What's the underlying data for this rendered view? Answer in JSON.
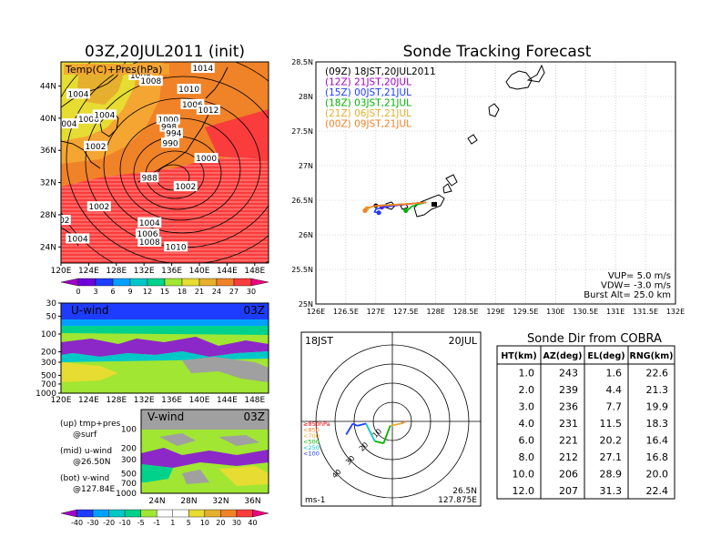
{
  "left_title": "03Z,20JUL2011 (init)",
  "right_title": "Sonde Tracking Forecast",
  "top_map": {
    "field_label": "Temp(C)+Pres(hPa)",
    "lat_labels": [
      "44N",
      "40N",
      "36N",
      "32N",
      "28N",
      "24N"
    ],
    "lon_labels": [
      "120E",
      "124E",
      "128E",
      "132E",
      "136E",
      "140E",
      "144E",
      "148E"
    ],
    "pressure_labels": [
      {
        "text": "1004",
        "lon": 122.5,
        "lat": 43.0
      },
      {
        "text": "1008",
        "lon": 131.5,
        "lat": 45.3
      },
      {
        "text": "1014",
        "lon": 140.5,
        "lat": 46.2
      },
      {
        "text": "1010",
        "lon": 138.5,
        "lat": 43.6
      },
      {
        "text": "1008",
        "lon": 133.0,
        "lat": 44.6
      },
      {
        "text": "1004",
        "lon": 120.8,
        "lat": 39.3
      },
      {
        "text": "1006",
        "lon": 124.0,
        "lat": 39.9
      },
      {
        "text": "1004",
        "lon": 126.3,
        "lat": 40.4
      },
      {
        "text": "1006",
        "lon": 139.0,
        "lat": 41.7
      },
      {
        "text": "1012",
        "lon": 141.3,
        "lat": 41.0
      },
      {
        "text": "1000",
        "lon": 135.5,
        "lat": 39.8
      },
      {
        "text": "998",
        "lon": 135.6,
        "lat": 38.9
      },
      {
        "text": "994",
        "lon": 136.3,
        "lat": 38.1
      },
      {
        "text": "990",
        "lon": 135.8,
        "lat": 36.9
      },
      {
        "text": "1002",
        "lon": 125.0,
        "lat": 36.5
      },
      {
        "text": "1000",
        "lon": 141.0,
        "lat": 35.0
      },
      {
        "text": "988",
        "lon": 132.8,
        "lat": 32.6
      },
      {
        "text": "1002",
        "lon": 138.0,
        "lat": 31.5
      },
      {
        "text": "1002",
        "lon": 125.5,
        "lat": 29.0
      },
      {
        "text": "02",
        "lon": 120.5,
        "lat": 27.3
      },
      {
        "text": "1004",
        "lon": 132.8,
        "lat": 27.0
      },
      {
        "text": "1004",
        "lon": 122.4,
        "lat": 25.0
      },
      {
        "text": "1006",
        "lon": 132.5,
        "lat": 25.6
      },
      {
        "text": "1008",
        "lon": 132.8,
        "lat": 24.6
      },
      {
        "text": "1010",
        "lon": 136.6,
        "lat": 24.0
      }
    ]
  },
  "temp_colorbar": {
    "labels": [
      "0",
      "3",
      "6",
      "9",
      "12",
      "15",
      "18",
      "21",
      "24",
      "27",
      "30"
    ],
    "colors": [
      "#a000c8",
      "#6e00dc",
      "#1e3cff",
      "#00a0ff",
      "#00c8c8",
      "#00d28c",
      "#a0e632",
      "#e6dc32",
      "#e6af2d",
      "#f08228",
      "#fa3c3c",
      "#f00082"
    ]
  },
  "u_wind": {
    "label": "U-wind",
    "time": "03Z",
    "y_labels": [
      "30",
      "50",
      "100",
      "200",
      "300",
      "500",
      "700",
      "1000"
    ],
    "x_labels": [
      "120E",
      "124E",
      "128E",
      "132E",
      "136E",
      "140E",
      "144E",
      "148E"
    ]
  },
  "v_wind": {
    "label": "V-wind",
    "time": "03Z",
    "y_labels": [
      "100",
      "200",
      "300",
      "500",
      "700",
      "1000"
    ],
    "x_labels": [
      "24N",
      "28N",
      "32N",
      "36N"
    ]
  },
  "wind_colorbar": {
    "labels": [
      "-40",
      "-30",
      "-20",
      "-10",
      "-5",
      "-1",
      "1",
      "5",
      "10",
      "20",
      "30",
      "40"
    ],
    "colors": [
      "#a000c8",
      "#1e3cff",
      "#00a0ff",
      "#00c8c8",
      "#00d28c",
      "#a0e632",
      "#ffffff",
      "#ffffff",
      "#e6dc32",
      "#e6af2d",
      "#f08228",
      "#fa3c3c",
      "#f00082"
    ]
  },
  "legend_notes": [
    {
      "line1": "(up) tmp+pres",
      "line2": "@surf"
    },
    {
      "line1": "(mid) u-wind",
      "line2": "@26.50N"
    },
    {
      "line1": "(bot) v-wind",
      "line2": "@127.84E"
    }
  ],
  "chart_data": {
    "type": "line",
    "title": "Sonde Tracking Forecast",
    "xlim": [
      126.0,
      132.0
    ],
    "ylim": [
      25.0,
      28.5
    ],
    "x_ticks": [
      "126E",
      "126.5E",
      "127E",
      "127.5E",
      "128E",
      "128.5E",
      "129E",
      "129.5E",
      "130E",
      "130.5E",
      "131E",
      "131.5E",
      "132E"
    ],
    "y_ticks": [
      "25N",
      "25.5N",
      "26N",
      "26.5N",
      "27N",
      "27.5N",
      "28N",
      "28.5N"
    ],
    "series": [
      {
        "name": "(09Z) 18JST,20JUL2011",
        "color": "#000000",
        "x": [
          127.84,
          127.6,
          127.4,
          127.2,
          127.0
        ],
        "y": [
          26.47,
          26.45,
          26.44,
          26.43,
          26.42
        ]
      },
      {
        "name": "(12Z) 21JST,20JUL",
        "color": "#a000c8",
        "x": [
          127.84,
          127.7,
          127.5,
          127.3,
          127.1
        ],
        "y": [
          26.47,
          26.46,
          26.44,
          26.42,
          26.4
        ]
      },
      {
        "name": "(15Z) 00JST,21JUL",
        "color": "#1e3cff",
        "x": [
          127.84,
          127.6,
          127.35,
          127.15,
          127.0,
          126.98,
          127.05
        ],
        "y": [
          26.47,
          26.45,
          26.43,
          26.4,
          26.37,
          26.33,
          26.32
        ]
      },
      {
        "name": "(18Z) 03JST,21JUL",
        "color": "#00b400",
        "x": [
          127.84,
          127.7,
          127.6,
          127.55,
          127.5
        ],
        "y": [
          26.47,
          26.44,
          26.41,
          26.37,
          26.35
        ]
      },
      {
        "name": "(21Z) 06JST,21JUL",
        "color": "#e6af2d",
        "x": [
          127.84,
          127.6,
          127.4,
          127.2,
          126.95,
          126.85
        ],
        "y": [
          26.47,
          26.45,
          26.44,
          26.43,
          26.41,
          26.38
        ]
      },
      {
        "name": "(00Z) 09JST,21JUL",
        "color": "#f08228",
        "x": [
          127.84,
          127.6,
          127.3,
          127.0,
          126.85,
          126.82
        ],
        "y": [
          26.47,
          26.45,
          26.43,
          26.42,
          26.39,
          26.35
        ]
      }
    ],
    "annotations": [
      "VUP= 5.0 m/s",
      "VDW= -3.0 m/s",
      "Burst Alt= 25.0 km"
    ]
  },
  "hodograph": {
    "top_left": "18JST",
    "top_right": "20JUL",
    "ring_labels": [
      "10",
      "20",
      "30",
      "40"
    ],
    "level_legend": [
      {
        "text": "≥850hPa",
        "color": "#f00000"
      },
      {
        "text": "<850",
        "color": "#f08228"
      },
      {
        "text": "<700",
        "color": "#e6af2d"
      },
      {
        "text": "<500",
        "color": "#00b400"
      },
      {
        "text": "<250",
        "color": "#00c8c8"
      },
      {
        "text": "<100",
        "color": "#1e3cff"
      }
    ],
    "unit": "ms-1",
    "lat": "26.5N",
    "lon": "127.875E",
    "trace": [
      {
        "u": 3,
        "v": 0,
        "color": "#f00000"
      },
      {
        "u": 2,
        "v": -0.5,
        "color": "#f08228"
      },
      {
        "u": -0.5,
        "v": -1,
        "color": "#e6af2d"
      },
      {
        "u": -2,
        "v": -5,
        "color": "#00b400"
      },
      {
        "u": -4,
        "v": -4.5,
        "color": "#00b400"
      },
      {
        "u": -6,
        "v": -0.5,
        "color": "#00c8c8"
      },
      {
        "u": -8,
        "v": -1,
        "color": "#1e3cff"
      },
      {
        "u": -9,
        "v": -0.5,
        "color": "#1e3cff"
      },
      {
        "u": -10.5,
        "v": -3,
        "color": "#1e3cff"
      }
    ]
  },
  "sonde_table": {
    "title": "Sonde Dir from COBRA",
    "headers": [
      "HT(km)",
      "AZ(deg)",
      "EL(deg)",
      "RNG(km)"
    ],
    "rows": [
      [
        "1.0",
        "243",
        "1.6",
        "22.6"
      ],
      [
        "2.0",
        "239",
        "4.4",
        "21.3"
      ],
      [
        "3.0",
        "236",
        "7.7",
        "19.9"
      ],
      [
        "4.0",
        "231",
        "11.5",
        "18.3"
      ],
      [
        "6.0",
        "221",
        "20.2",
        "16.4"
      ],
      [
        "8.0",
        "212",
        "27.1",
        "16.8"
      ],
      [
        "10.0",
        "206",
        "28.9",
        "20.0"
      ],
      [
        "12.0",
        "207",
        "31.3",
        "22.4"
      ]
    ]
  }
}
